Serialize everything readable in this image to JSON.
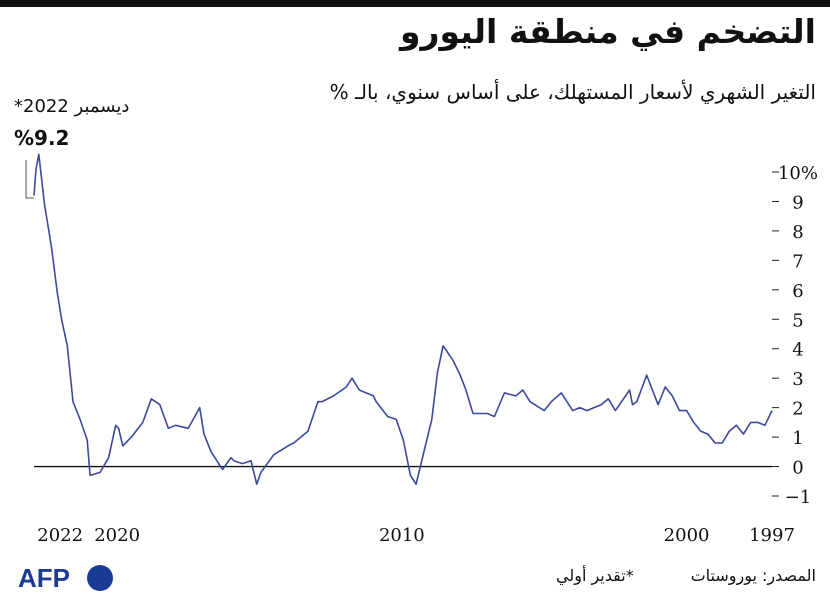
{
  "chart_data": {
    "type": "line",
    "title": "التضخم في منطقة اليورو",
    "subtitle": "التغير الشهري لأسعار المستهلك، على أساس سنوي، بالـ %",
    "ylim": [
      -1,
      10
    ],
    "yticks": [
      {
        "value": 10,
        "label": "10%"
      },
      {
        "value": 9,
        "label": "9"
      },
      {
        "value": 8,
        "label": "8"
      },
      {
        "value": 7,
        "label": "7"
      },
      {
        "value": 6,
        "label": "6"
      },
      {
        "value": 5,
        "label": "5"
      },
      {
        "value": 4,
        "label": "4"
      },
      {
        "value": 3,
        "label": "3"
      },
      {
        "value": 2,
        "label": "2"
      },
      {
        "value": 1,
        "label": "1"
      },
      {
        "value": 0,
        "label": "0"
      },
      {
        "value": -1,
        "label": "−1"
      }
    ],
    "xlim": [
      1997.0,
      2022.92
    ],
    "xticks": [
      {
        "value": 1997,
        "label": "1997"
      },
      {
        "value": 2000,
        "label": "2000"
      },
      {
        "value": 2010,
        "label": "2010"
      },
      {
        "value": 2020,
        "label": "2020"
      },
      {
        "value": 2022,
        "label": "2022"
      }
    ],
    "zero_line": 0,
    "line_color": "#3b4a9b",
    "annotation": {
      "date": "ديسمبر 2022*",
      "value": "%9.2"
    },
    "series": [
      {
        "points": [
          [
            1997.0,
            1.9
          ],
          [
            1997.25,
            1.4
          ],
          [
            1997.5,
            1.5
          ],
          [
            1997.75,
            1.5
          ],
          [
            1998.0,
            1.1
          ],
          [
            1998.25,
            1.4
          ],
          [
            1998.5,
            1.2
          ],
          [
            1998.75,
            0.8
          ],
          [
            1999.0,
            0.8
          ],
          [
            1999.25,
            1.1
          ],
          [
            1999.5,
            1.2
          ],
          [
            1999.75,
            1.5
          ],
          [
            2000.0,
            1.9
          ],
          [
            2000.25,
            1.9
          ],
          [
            2000.5,
            2.4
          ],
          [
            2000.75,
            2.7
          ],
          [
            2001.0,
            2.1
          ],
          [
            2001.4,
            3.1
          ],
          [
            2001.75,
            2.2
          ],
          [
            2001.9,
            2.1
          ],
          [
            2002.0,
            2.6
          ],
          [
            2002.5,
            1.9
          ],
          [
            2002.75,
            2.3
          ],
          [
            2003.0,
            2.1
          ],
          [
            2003.25,
            2.0
          ],
          [
            2003.5,
            1.9
          ],
          [
            2003.75,
            2.0
          ],
          [
            2004.0,
            1.9
          ],
          [
            2004.4,
            2.5
          ],
          [
            2004.75,
            2.2
          ],
          [
            2005.0,
            1.9
          ],
          [
            2005.5,
            2.2
          ],
          [
            2005.75,
            2.6
          ],
          [
            2006.0,
            2.4
          ],
          [
            2006.4,
            2.5
          ],
          [
            2006.75,
            1.7
          ],
          [
            2007.0,
            1.8
          ],
          [
            2007.5,
            1.8
          ],
          [
            2007.75,
            2.6
          ],
          [
            2007.95,
            3.1
          ],
          [
            2008.2,
            3.6
          ],
          [
            2008.55,
            4.1
          ],
          [
            2008.75,
            3.2
          ],
          [
            2008.95,
            1.6
          ],
          [
            2009.2,
            0.6
          ],
          [
            2009.5,
            -0.6
          ],
          [
            2009.7,
            -0.3
          ],
          [
            2009.95,
            0.9
          ],
          [
            2010.2,
            1.6
          ],
          [
            2010.5,
            1.7
          ],
          [
            2010.9,
            2.2
          ],
          [
            2011.0,
            2.4
          ],
          [
            2011.5,
            2.6
          ],
          [
            2011.75,
            3.0
          ],
          [
            2011.95,
            2.7
          ],
          [
            2012.4,
            2.4
          ],
          [
            2012.8,
            2.2
          ],
          [
            2012.95,
            2.2
          ],
          [
            2013.3,
            1.2
          ],
          [
            2013.8,
            0.8
          ],
          [
            2014.0,
            0.7
          ],
          [
            2014.5,
            0.4
          ],
          [
            2014.95,
            -0.2
          ],
          [
            2015.1,
            -0.6
          ],
          [
            2015.3,
            0.2
          ],
          [
            2015.6,
            0.1
          ],
          [
            2015.9,
            0.2
          ],
          [
            2016.0,
            0.3
          ],
          [
            2016.3,
            -0.1
          ],
          [
            2016.7,
            0.5
          ],
          [
            2016.95,
            1.1
          ],
          [
            2017.1,
            2.0
          ],
          [
            2017.5,
            1.3
          ],
          [
            2017.95,
            1.4
          ],
          [
            2018.2,
            1.3
          ],
          [
            2018.5,
            2.1
          ],
          [
            2018.8,
            2.3
          ],
          [
            2019.1,
            1.5
          ],
          [
            2019.5,
            1.0
          ],
          [
            2019.8,
            0.7
          ],
          [
            2019.95,
            1.3
          ],
          [
            2020.05,
            1.4
          ],
          [
            2020.3,
            0.3
          ],
          [
            2020.6,
            -0.2
          ],
          [
            2020.95,
            -0.3
          ],
          [
            2021.05,
            0.9
          ],
          [
            2021.3,
            1.6
          ],
          [
            2021.55,
            2.2
          ],
          [
            2021.75,
            4.1
          ],
          [
            2021.95,
            5.0
          ],
          [
            2022.1,
            5.9
          ],
          [
            2022.3,
            7.4
          ],
          [
            2022.55,
            8.9
          ],
          [
            2022.75,
            10.6
          ],
          [
            2022.85,
            10.1
          ],
          [
            2022.92,
            9.2
          ]
        ]
      }
    ]
  },
  "footer": {
    "source": "المصدر: يوروستات",
    "note": "*تقدير أولي",
    "logo_text": "AFP"
  }
}
